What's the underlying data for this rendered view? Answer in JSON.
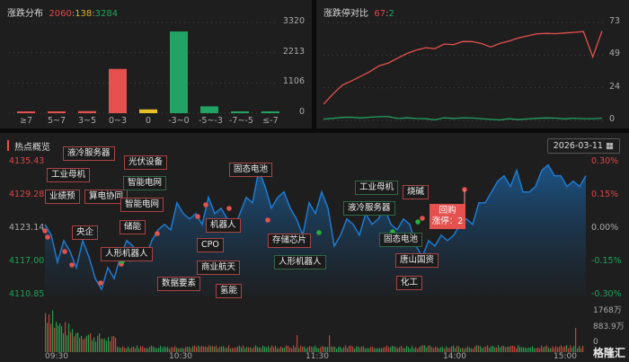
{
  "distribution": {
    "title": "涨跌分布",
    "up": "2060",
    "flat": "138",
    "down": "3284",
    "sep": ":"
  },
  "limit": {
    "title": "涨跌停对比",
    "up": "67",
    "down": "2",
    "sep": ":"
  },
  "hot": {
    "title": "热点概览",
    "date": "2026-03-11",
    "left_axis": [
      "4135.43",
      "4129.28",
      "4123.14",
      "4117.00",
      "4110.85"
    ],
    "right_axis": [
      "0.30%",
      "0.15%",
      "0.00%",
      "-0.15%",
      "-0.30%"
    ],
    "vol_axis": [
      "1768万",
      "883.9万",
      "0"
    ],
    "times": [
      "09:30",
      "10:30",
      "11:30",
      "14:00",
      "15:00"
    ],
    "tags": [
      "液冷服务器",
      "工业母机",
      "业绩预",
      "算电协同",
      "央企",
      "光伏设备",
      "智能电网",
      "智能电网",
      "储能",
      "人形机器人",
      "数据要素",
      "固态电池",
      "机器人",
      "CPO",
      "商业航天",
      "氢能",
      "存储芯片",
      "人形机器人",
      "工业母机",
      "液冷服务器",
      "固态电池",
      "烧碱",
      "唐山国资",
      "化工"
    ],
    "popup": {
      "title": "回购",
      "line": "涨停：2"
    },
    "logo": "格隆汇"
  },
  "chart_data": [
    {
      "type": "bar",
      "title": "涨跌分布",
      "categories": [
        "≥7",
        "5~7",
        "3~5",
        "0~3",
        "0",
        "-3~0",
        "-5~-3",
        "-7~-5",
        "≤-7"
      ],
      "values": [
        50,
        45,
        75,
        1620,
        138,
        2990,
        250,
        40,
        5
      ],
      "colors": [
        "#e5514f",
        "#e5514f",
        "#e5514f",
        "#e5514f",
        "#e6c227",
        "#22a264",
        "#22a264",
        "#22a264",
        "#22a264"
      ],
      "yticks": [
        "3320",
        "2213",
        "1106",
        "0"
      ],
      "ylim": [
        0,
        3320
      ]
    },
    {
      "type": "line",
      "title": "涨跌停对比",
      "ylim": [
        0,
        73
      ],
      "yticks": [
        "73",
        "49",
        "24",
        "0"
      ],
      "series": [
        {
          "name": "涨停",
          "color": "#e5514f",
          "values": [
            12,
            20,
            27,
            30,
            33,
            36,
            40,
            42,
            46,
            50,
            53,
            55,
            54,
            57,
            56,
            58,
            58,
            57,
            55,
            58,
            60,
            62,
            63,
            64,
            64,
            64,
            65,
            66,
            67,
            48,
            67
          ]
        },
        {
          "name": "跌停",
          "color": "#22a264",
          "values": [
            1,
            2,
            3,
            3,
            2,
            2,
            2,
            2,
            1,
            2,
            2,
            2,
            1,
            2,
            1,
            1,
            1,
            1,
            1,
            1,
            2,
            1,
            1,
            1,
            1,
            1,
            1,
            2,
            2,
            2,
            2
          ]
        }
      ]
    },
    {
      "type": "area",
      "title": "热点概览",
      "ylim": [
        4110.85,
        4135.43
      ],
      "values": [
        4124,
        4122,
        4117,
        4121,
        4119,
        4116,
        4121,
        4118,
        4114,
        4112,
        4116,
        4114,
        4118,
        4121,
        4120,
        4118,
        4118,
        4121,
        4123,
        4124,
        4123,
        4128,
        4126,
        4125,
        4126,
        4124,
        4129,
        4126,
        4127,
        4125,
        4123,
        4126,
        4129,
        4128,
        4134,
        4131,
        4127,
        4129,
        4130,
        4127,
        4125,
        4122,
        4128,
        4126,
        4130,
        4127,
        4120,
        4122,
        4125,
        4124,
        4122,
        4126,
        4124,
        4125,
        4127,
        4124,
        4123,
        4125,
        4124,
        4120,
        4118,
        4121,
        4120,
        4122,
        4121,
        4122,
        4124,
        4125,
        4124,
        4128,
        4128,
        4130,
        4132,
        4133,
        4131,
        4134,
        4130,
        4130,
        4131,
        4134,
        4135,
        4133,
        4133,
        4131,
        4132,
        4131,
        4133
      ]
    }
  ]
}
